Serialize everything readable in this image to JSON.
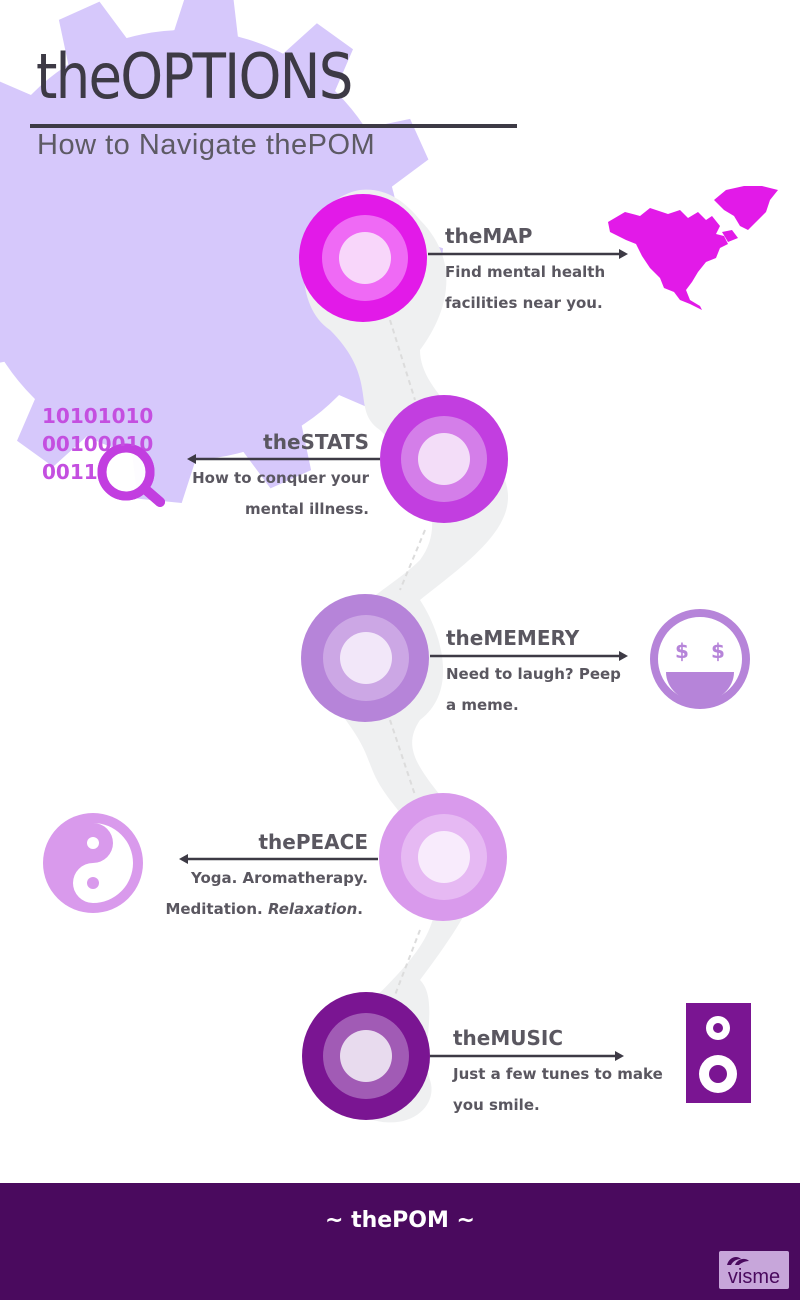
{
  "header": {
    "title": "theOPTIONS",
    "subtitle": "How to Navigate thePOM"
  },
  "colors": {
    "gear": "#d6c8fb",
    "map": "#e21ae8",
    "stats": "#c23ee0",
    "memery": "#b684d9",
    "peace": "#d99aec",
    "music": "#7a1592",
    "footer": "#4a0a5e"
  },
  "options": [
    {
      "id": "map",
      "title": "theMAP",
      "desc_lines": [
        "Find mental health",
        "facilities near you."
      ],
      "icon": "north-america-map-icon"
    },
    {
      "id": "stats",
      "title": "theSTATS",
      "desc_lines": [
        "How to conquer your",
        "mental illness."
      ],
      "icon": "binary-magnifier-icon"
    },
    {
      "id": "memery",
      "title": "theMEMERY",
      "desc_lines": [
        "Need to laugh? Peep",
        "a meme."
      ],
      "icon": "dollar-eyes-smiley-icon"
    },
    {
      "id": "peace",
      "title": "thePEACE",
      "desc_line1": "Yoga. Aromatherapy.",
      "desc_line2_a": "Meditation. ",
      "desc_line2_b": "Relaxation",
      "desc_line2_c": ".",
      "icon": "yin-yang-icon"
    },
    {
      "id": "music",
      "title": "theMUSIC",
      "desc_lines": [
        "Just a few tunes to make",
        "you smile."
      ],
      "icon": "speaker-icon"
    }
  ],
  "stats_icon": {
    "binary_lines": [
      "10101010",
      "00100010",
      "0011"
    ]
  },
  "footer": {
    "text": "~ thePOM ~",
    "badge": "visme"
  }
}
